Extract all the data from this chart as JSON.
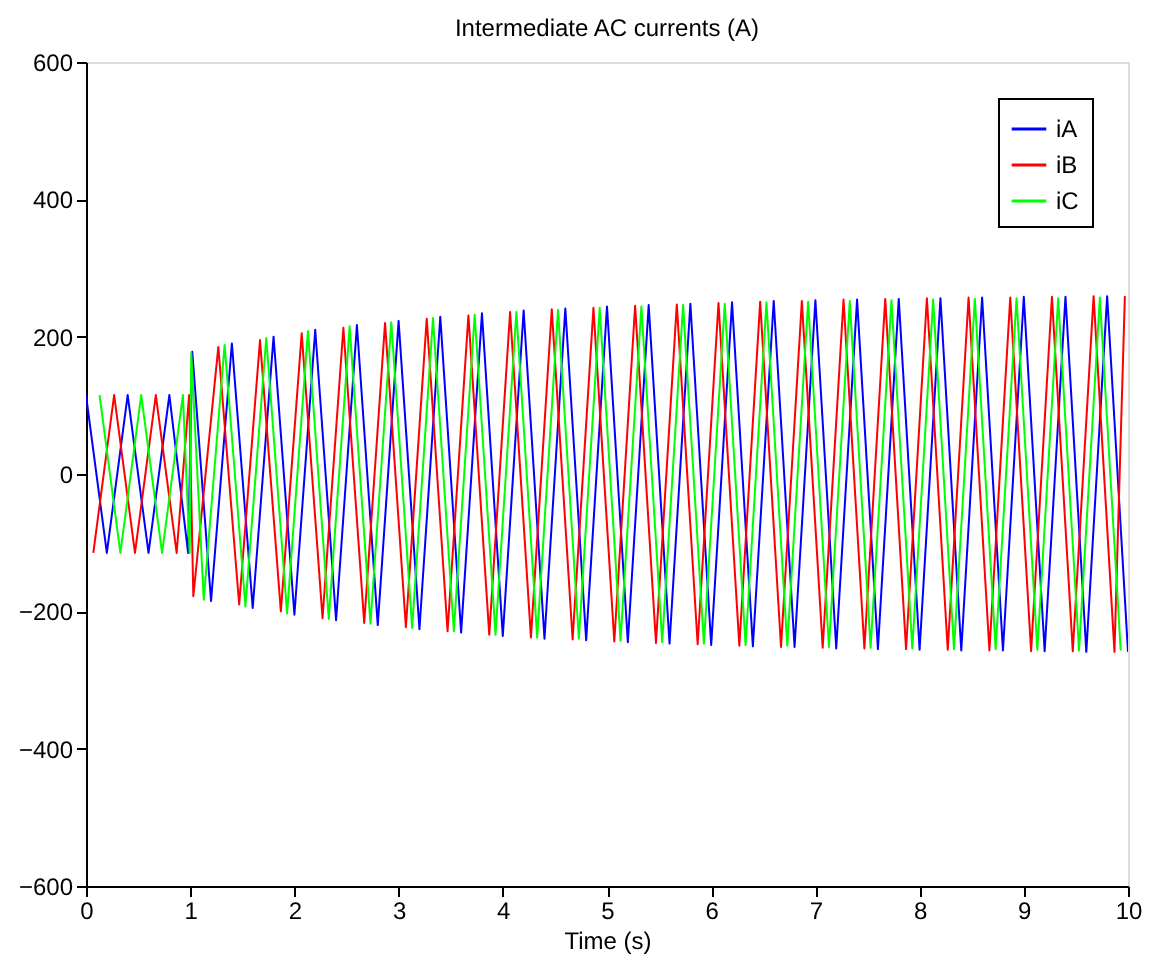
{
  "chart_data": {
    "type": "line",
    "title": "Intermediate AC currents (A)",
    "xlabel": "Time (s)",
    "xlim": [
      0,
      10
    ],
    "xticks": [
      0,
      1,
      2,
      3,
      4,
      5,
      6,
      7,
      8,
      9,
      10
    ],
    "ylim": [
      -600,
      600
    ],
    "yticks": [
      -600,
      -400,
      -200,
      0,
      200,
      400,
      600
    ],
    "grid": false,
    "legend": "top right",
    "line_style": "solid",
    "marker": "none",
    "series": [
      {
        "name": "iA",
        "color": "#0000ff",
        "x": [
          0,
          0.2,
          0.4,
          0.6,
          0.8,
          0.98,
          1.02,
          1.2,
          1.4,
          1.6,
          1.8,
          2.0,
          2.2,
          2.4,
          2.6,
          2.8,
          3.0,
          3.2,
          3.4,
          3.6,
          3.8,
          4.0,
          4.2,
          4.4,
          4.6,
          4.8,
          5.0,
          5.2,
          5.4,
          5.6,
          5.8,
          6.0,
          6.2,
          6.4,
          6.6,
          6.8,
          7.0,
          7.2,
          7.4,
          7.6,
          7.8,
          8.0,
          8.2,
          8.4,
          8.6,
          8.8,
          9.0,
          9.2,
          9.4,
          9.6,
          9.8,
          10.0
        ],
        "values": [
          115,
          -115,
          115,
          -115,
          115,
          -115,
          178,
          -185,
          190,
          -195,
          200,
          -205,
          210,
          -213,
          217,
          -220,
          223,
          -226,
          229,
          -231,
          234,
          -236,
          238,
          -240,
          241,
          -242,
          244,
          -245,
          246,
          -247,
          248,
          -249,
          250,
          -251,
          252,
          -252,
          253,
          -254,
          254,
          -255,
          255,
          -256,
          256,
          -257,
          257,
          -257,
          258,
          -258,
          258,
          -259,
          259,
          -259
        ]
      },
      {
        "name": "iB",
        "color": "#ff0000",
        "x": [
          0.07,
          0.27,
          0.47,
          0.67,
          0.87,
          0.99,
          1.03,
          1.27,
          1.47,
          1.67,
          1.87,
          2.07,
          2.27,
          2.47,
          2.67,
          2.87,
          3.07,
          3.27,
          3.47,
          3.67,
          3.87,
          4.07,
          4.27,
          4.47,
          4.67,
          4.87,
          5.07,
          5.27,
          5.47,
          5.67,
          5.87,
          6.07,
          6.27,
          6.47,
          6.67,
          6.87,
          7.07,
          7.27,
          7.47,
          7.67,
          7.87,
          8.07,
          8.27,
          8.47,
          8.67,
          8.87,
          9.07,
          9.27,
          9.47,
          9.67,
          9.87,
          9.97
        ],
        "values": [
          -115,
          115,
          -115,
          115,
          -115,
          115,
          -178,
          185,
          -190,
          195,
          -200,
          205,
          -210,
          213,
          -217,
          220,
          -223,
          226,
          -229,
          231,
          -234,
          236,
          -238,
          240,
          -241,
          242,
          -244,
          245,
          -246,
          247,
          -248,
          249,
          -250,
          251,
          -252,
          252,
          -253,
          254,
          -254,
          255,
          -255,
          256,
          -256,
          257,
          -257,
          257,
          -258,
          258,
          -258,
          259,
          -259,
          259
        ]
      },
      {
        "name": "iC",
        "color": "#00ff00",
        "x": [
          0.13,
          0.33,
          0.53,
          0.73,
          0.93,
          0.995,
          1.01,
          1.13,
          1.33,
          1.53,
          1.73,
          1.93,
          2.13,
          2.33,
          2.53,
          2.73,
          2.93,
          3.13,
          3.33,
          3.53,
          3.73,
          3.93,
          4.13,
          4.33,
          4.53,
          4.73,
          4.93,
          5.13,
          5.33,
          5.53,
          5.73,
          5.93,
          6.13,
          6.33,
          6.53,
          6.73,
          6.93,
          7.13,
          7.33,
          7.53,
          7.73,
          7.93,
          8.13,
          8.33,
          8.53,
          8.73,
          8.93,
          9.13,
          9.33,
          9.53,
          9.73,
          9.93
        ],
        "values": [
          115,
          -115,
          115,
          -115,
          115,
          -115,
          176,
          -183,
          188,
          -193,
          198,
          -203,
          208,
          -211,
          215,
          -218,
          221,
          -224,
          227,
          -229,
          232,
          -234,
          236,
          -238,
          239,
          -240,
          242,
          -243,
          244,
          -245,
          246,
          -247,
          248,
          -249,
          250,
          -250,
          251,
          -252,
          252,
          -253,
          253,
          -254,
          254,
          -255,
          255,
          -255,
          256,
          -256,
          256,
          -257,
          257,
          -257
        ]
      }
    ]
  }
}
